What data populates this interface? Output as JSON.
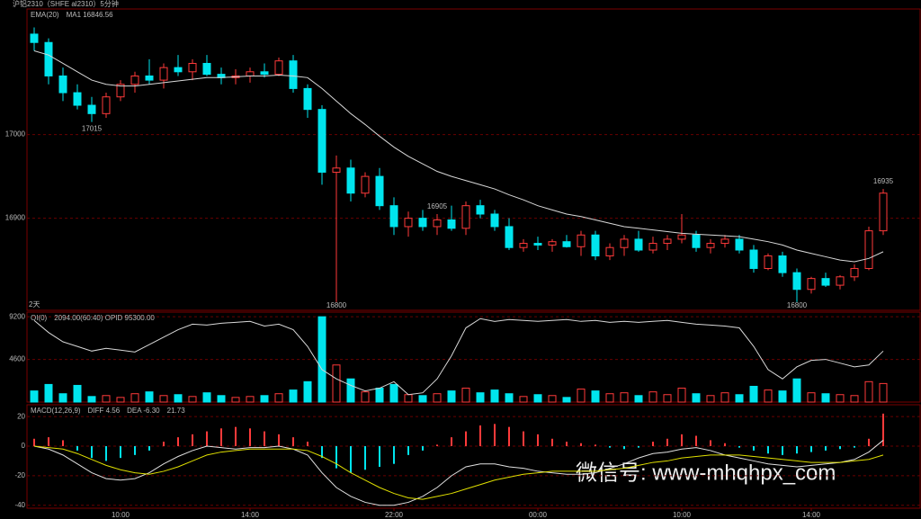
{
  "header": {
    "title": "沪铝2310（SHFE al2310）5分钟"
  },
  "watermark": "微信号: www-mhqhpx_com",
  "chart_data": [
    {
      "type": "candlestick",
      "indicator_label": "MA1 16846.56",
      "period_label": "2天",
      "up_color": "#ff3a3a",
      "down_color": "#00e5ee",
      "open": [
        17120,
        17110,
        17070,
        17050,
        17035,
        17025,
        17045,
        17060,
        17070,
        17065,
        17080,
        17075,
        17085,
        17072,
        17068,
        17070,
        17075,
        17072,
        17088,
        17055,
        17030,
        16955,
        16960,
        16930,
        16950,
        16915,
        16890,
        16900,
        16890,
        16898,
        16888,
        16915,
        16905,
        16890,
        16865,
        16870,
        16868,
        16872,
        16866,
        16880,
        16855,
        16865,
        16875,
        16862,
        16870,
        16875,
        16880,
        16865,
        16870,
        16875,
        16862,
        16840,
        16855,
        16835,
        16815,
        16828,
        16820,
        16830,
        16840,
        16885
      ],
      "high": [
        17128,
        17115,
        17080,
        17060,
        17045,
        17050,
        17065,
        17075,
        17090,
        17085,
        17095,
        17090,
        17095,
        17080,
        17078,
        17080,
        17085,
        17092,
        17095,
        17060,
        17035,
        16975,
        16970,
        16955,
        16960,
        16925,
        16908,
        16910,
        16905,
        16915,
        16920,
        16922,
        16910,
        16900,
        16875,
        16878,
        16875,
        16880,
        16885,
        16885,
        16870,
        16880,
        16885,
        16878,
        16880,
        16905,
        16885,
        16875,
        16880,
        16880,
        16868,
        16858,
        16860,
        16840,
        16830,
        16835,
        16832,
        16845,
        16890,
        16935
      ],
      "low": [
        17100,
        17060,
        17040,
        17030,
        17015,
        17020,
        17040,
        17050,
        17060,
        17055,
        17070,
        17065,
        17070,
        17060,
        17060,
        17062,
        17068,
        17070,
        17050,
        17020,
        16940,
        16800,
        16920,
        16925,
        16910,
        16880,
        16878,
        16885,
        16880,
        16885,
        16880,
        16900,
        16885,
        16862,
        16860,
        16862,
        16860,
        16865,
        16855,
        16850,
        16850,
        16855,
        16860,
        16858,
        16862,
        16870,
        16860,
        16858,
        16865,
        16858,
        16835,
        16838,
        16830,
        16800,
        16810,
        16818,
        16815,
        16825,
        16838,
        16880
      ],
      "close": [
        17110,
        17070,
        17050,
        17035,
        17025,
        17045,
        17060,
        17070,
        17065,
        17080,
        17075,
        17085,
        17072,
        17068,
        17070,
        17075,
        17072,
        17088,
        17055,
        17030,
        16955,
        16960,
        16930,
        16950,
        16915,
        16890,
        16900,
        16890,
        16898,
        16888,
        16915,
        16905,
        16890,
        16865,
        16870,
        16868,
        16872,
        16866,
        16880,
        16855,
        16865,
        16875,
        16862,
        16870,
        16875,
        16880,
        16865,
        16870,
        16875,
        16862,
        16840,
        16855,
        16835,
        16815,
        16828,
        16820,
        16830,
        16840,
        16885,
        16930
      ],
      "series": [
        {
          "name": "EMA(20)",
          "color": "#d8d8d8",
          "values": [
            17100,
            17095,
            17085,
            17075,
            17065,
            17060,
            17058,
            17058,
            17060,
            17062,
            17064,
            17066,
            17068,
            17068,
            17069,
            17070,
            17070,
            17071,
            17070,
            17068,
            17055,
            17040,
            17025,
            17012,
            16998,
            16985,
            16974,
            16965,
            16956,
            16950,
            16945,
            16940,
            16935,
            16928,
            16922,
            16915,
            16910,
            16905,
            16902,
            16898,
            16894,
            16890,
            16888,
            16886,
            16884,
            16882,
            16881,
            16880,
            16879,
            16878,
            16875,
            16872,
            16868,
            16862,
            16858,
            16854,
            16850,
            16848,
            16852,
            16860
          ]
        }
      ],
      "annotations": [
        17015,
        16800,
        16905,
        16800,
        16935
      ],
      "ylim": [
        16790,
        17150
      ],
      "yticks": [
        17000,
        16900
      ],
      "grid": true
    },
    {
      "type": "volume",
      "indicator_label": "2094.00(60:40)  OPID 95300.00",
      "values": [
        1200,
        1900,
        900,
        1800,
        600,
        700,
        500,
        900,
        1100,
        700,
        800,
        600,
        1000,
        700,
        500,
        600,
        700,
        900,
        1300,
        2200,
        9200,
        4000,
        2500,
        1100,
        1500,
        1900,
        800,
        700,
        900,
        1200,
        1500,
        1000,
        1300,
        900,
        600,
        800,
        700,
        500,
        1400,
        1200,
        900,
        1000,
        700,
        1100,
        800,
        1500,
        900,
        700,
        1000,
        800,
        1700,
        1300,
        1200,
        2500,
        1000,
        900,
        800,
        700,
        2200,
        2000
      ],
      "series": [
        {
          "name": "OI(0)",
          "color": "#d8d8d8",
          "values": [
            8800,
            7500,
            6500,
            6000,
            5500,
            5800,
            5600,
            5400,
            6200,
            7000,
            7800,
            8400,
            8300,
            8500,
            8600,
            8700,
            8200,
            8400,
            7800,
            6000,
            3500,
            2500,
            1800,
            1200,
            1500,
            2200,
            800,
            1000,
            2500,
            5000,
            8000,
            9000,
            8700,
            8900,
            8800,
            8700,
            8800,
            8900,
            8700,
            8800,
            8600,
            8700,
            8600,
            8700,
            8800,
            8600,
            8400,
            8300,
            8200,
            8000,
            6000,
            3500,
            2500,
            3800,
            4500,
            4600,
            4200,
            3800,
            4000,
            5500
          ]
        }
      ],
      "ylim": [
        0,
        9700
      ],
      "yticks": [
        9200,
        4600
      ],
      "grid": true
    },
    {
      "type": "macd",
      "title": "MACD(12,26,9)",
      "indicator_label": "21.73",
      "values": [
        5,
        6,
        4,
        -3,
        -8,
        -10,
        -8,
        -6,
        -3,
        3,
        6,
        8,
        10,
        12,
        13,
        12,
        10,
        8,
        6,
        3,
        -8,
        -15,
        -18,
        -16,
        -14,
        -12,
        -6,
        -3,
        1,
        6,
        10,
        14,
        15,
        13,
        10,
        8,
        5,
        3,
        2,
        1,
        -1,
        -2,
        -1,
        3,
        5,
        8,
        7,
        4,
        2,
        -1,
        -3,
        -5,
        -6,
        -5,
        -4,
        -3,
        -2,
        -1,
        5,
        22
      ],
      "series": [
        {
          "name": "DIFF 4.56",
          "color": "#e0e0e0",
          "values": [
            0,
            -2,
            -6,
            -12,
            -18,
            -22,
            -23,
            -22,
            -18,
            -12,
            -7,
            -3,
            0,
            -1,
            -2,
            -1,
            -1,
            0,
            -2,
            -6,
            -18,
            -28,
            -34,
            -38,
            -40,
            -40,
            -38,
            -34,
            -28,
            -20,
            -14,
            -12,
            -12,
            -14,
            -15,
            -17,
            -18,
            -19,
            -19,
            -18,
            -15,
            -12,
            -8,
            -5,
            -4,
            -2,
            -1,
            -3,
            -6,
            -8,
            -10,
            -12,
            -13,
            -14,
            -13,
            -12,
            -11,
            -9,
            -4,
            4
          ]
        },
        {
          "name": "DEA -6.30",
          "color": "#e0e000",
          "values": [
            0,
            -1,
            -2,
            -5,
            -9,
            -13,
            -16,
            -18,
            -19,
            -17,
            -14,
            -10,
            -6,
            -4,
            -3,
            -2,
            -2,
            -2,
            -2,
            -3,
            -7,
            -12,
            -18,
            -23,
            -28,
            -32,
            -35,
            -36,
            -34,
            -32,
            -29,
            -26,
            -23,
            -21,
            -19,
            -18,
            -17,
            -17,
            -17,
            -17,
            -16,
            -15,
            -13,
            -11,
            -10,
            -8,
            -7,
            -6,
            -6,
            -6,
            -7,
            -8,
            -9,
            -10,
            -11,
            -11,
            -11,
            -10,
            -9,
            -6
          ]
        }
      ],
      "xticks": [
        {
          "value": 6,
          "label": "10:00"
        },
        {
          "value": 15,
          "label": "14:00"
        },
        {
          "value": 25,
          "label": "22:00"
        },
        {
          "value": 35,
          "label": "00:00"
        },
        {
          "value": 45,
          "label": "10:00"
        },
        {
          "value": 54,
          "label": "14:00"
        }
      ],
      "ylim": [
        -42,
        28
      ],
      "yticks": [
        20,
        0,
        -20,
        -40
      ],
      "grid": true
    }
  ]
}
